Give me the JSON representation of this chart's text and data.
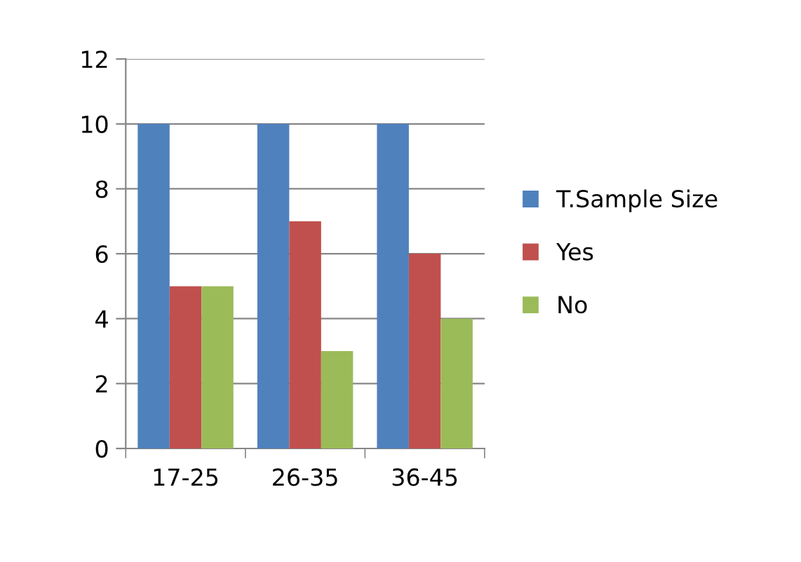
{
  "chart_data": {
    "type": "bar",
    "categories": [
      "17-25",
      "26-35",
      "36-45"
    ],
    "series": [
      {
        "name": "T.Sample Size",
        "color": "#4f81bd",
        "values": [
          10,
          10,
          10
        ]
      },
      {
        "name": "Yes",
        "color": "#c0504d",
        "values": [
          5,
          7,
          6
        ]
      },
      {
        "name": "No",
        "color": "#9bbb59",
        "values": [
          5,
          3,
          4
        ]
      }
    ],
    "ylim": [
      0,
      12
    ],
    "yticks": [
      0,
      2,
      4,
      6,
      8,
      10,
      12
    ],
    "grid": "y",
    "legend": "right"
  }
}
